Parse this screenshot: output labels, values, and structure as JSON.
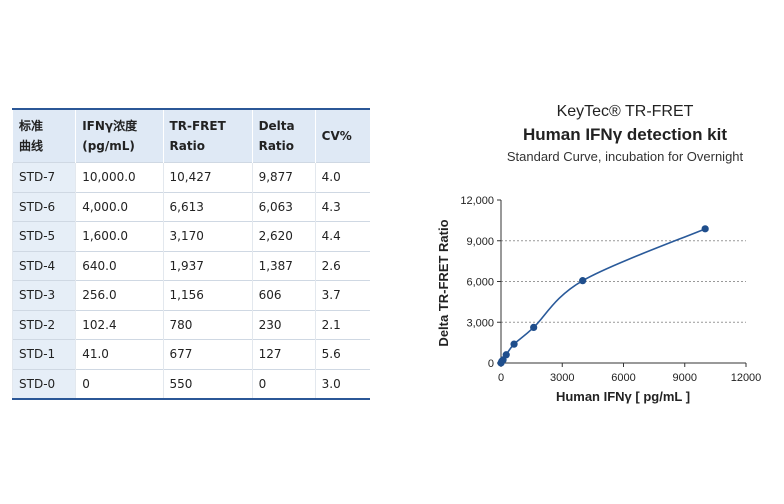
{
  "table": {
    "header": [
      [
        "标准",
        "曲线"
      ],
      [
        "IFNγ浓度",
        "(pg/mL)"
      ],
      [
        "TR-FRET",
        "Ratio"
      ],
      [
        "Delta",
        "Ratio"
      ],
      [
        "CV%"
      ]
    ],
    "rows": [
      [
        "STD-7",
        "10,000.0",
        "10,427",
        "9,877",
        "4.0"
      ],
      [
        "STD-6",
        "4,000.0",
        "6,613",
        "6,063",
        "4.3"
      ],
      [
        "STD-5",
        "1,600.0",
        "3,170",
        "2,620",
        "4.4"
      ],
      [
        "STD-4",
        "640.0",
        "1,937",
        "1,387",
        "2.6"
      ],
      [
        "STD-3",
        "256.0",
        "1,156",
        "606",
        "3.7"
      ],
      [
        "STD-2",
        "102.4",
        "780",
        "230",
        "2.1"
      ],
      [
        "STD-1",
        "41.0",
        "677",
        "127",
        "5.6"
      ],
      [
        "STD-0",
        "0",
        "550",
        "0",
        "3.0"
      ]
    ]
  },
  "chart_data": {
    "type": "scatter",
    "title": "KeyTec® TR-FRET",
    "subtitle": "Human IFNγ detection kit",
    "caption": "Standard Curve, incubation for Overnight",
    "x_label": "Human IFNγ [ pg/mL ]",
    "y_label": "Delta TR-FRET Ratio",
    "color": "#1f4e8c",
    "x": [
      10000,
      4000,
      1600,
      640,
      256,
      102.4,
      41,
      0
    ],
    "values": [
      9877,
      6063,
      2620,
      1387,
      606,
      230,
      127,
      0
    ],
    "xlim": [
      0,
      12000
    ],
    "xticks": [
      0,
      3000,
      6000,
      9000,
      12000
    ],
    "ylim": [
      0,
      12000
    ],
    "yticks": [
      0,
      {
        "value": 3000,
        "label": "3,000"
      },
      {
        "value": 6000,
        "label": "6,000"
      },
      {
        "value": 9000,
        "label": "9,000"
      },
      {
        "value": 12000,
        "label": "12,000"
      }
    ],
    "grid": true
  }
}
